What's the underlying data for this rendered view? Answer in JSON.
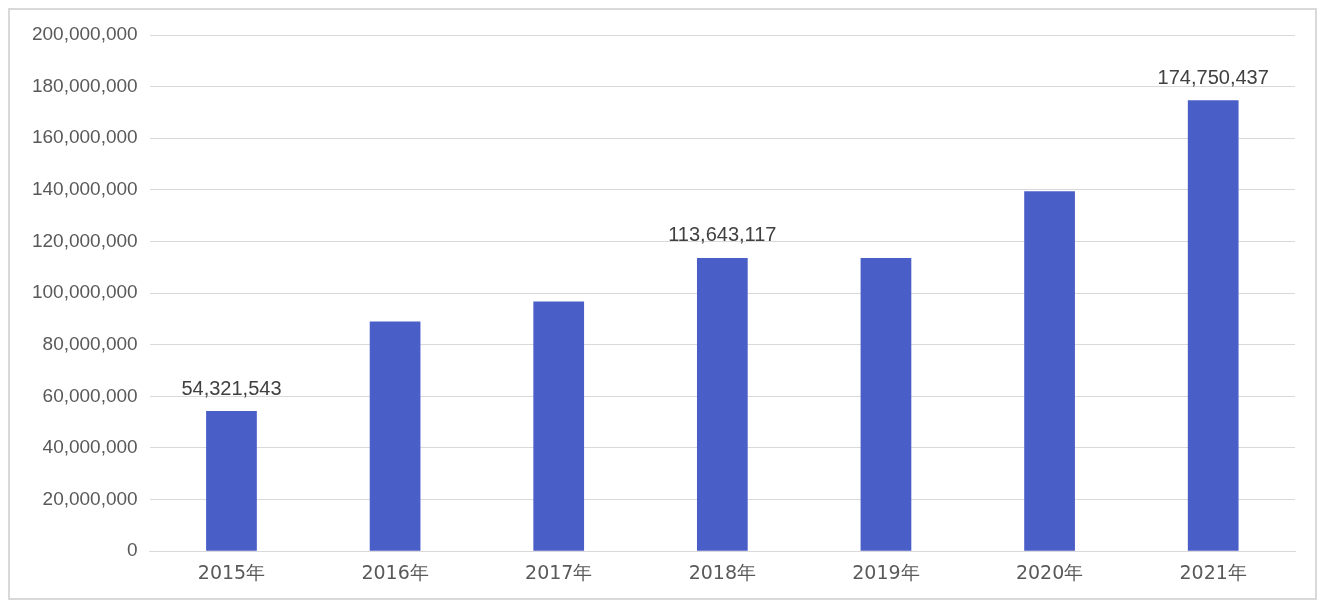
{
  "chart_data": {
    "type": "bar",
    "categories": [
      "2015年",
      "2016年",
      "2017年",
      "2018年",
      "2019年",
      "2020年",
      "2021年"
    ],
    "values": [
      54321543,
      89000000,
      96700000,
      113643117,
      113600000,
      139500000,
      174750437
    ],
    "value_labels": [
      "54,321,543",
      null,
      null,
      "113,643,117",
      null,
      null,
      "174,750,437"
    ],
    "color": "#4a5ec8",
    "ylim": [
      0,
      200000000
    ],
    "yticks": [
      {
        "value": 0,
        "label": "0"
      },
      {
        "value": 20000000,
        "label": "20,000,000"
      },
      {
        "value": 40000000,
        "label": "40,000,000"
      },
      {
        "value": 60000000,
        "label": "60,000,000"
      },
      {
        "value": 80000000,
        "label": "80,000,000"
      },
      {
        "value": 100000000,
        "label": "100,000,000"
      },
      {
        "value": 120000000,
        "label": "120,000,000"
      },
      {
        "value": 140000000,
        "label": "140,000,000"
      },
      {
        "value": 160000000,
        "label": "160,000,000"
      },
      {
        "value": 180000000,
        "label": "180,000,000"
      },
      {
        "value": 200000000,
        "label": "200,000,000"
      }
    ],
    "grid": "y",
    "legend": false
  }
}
